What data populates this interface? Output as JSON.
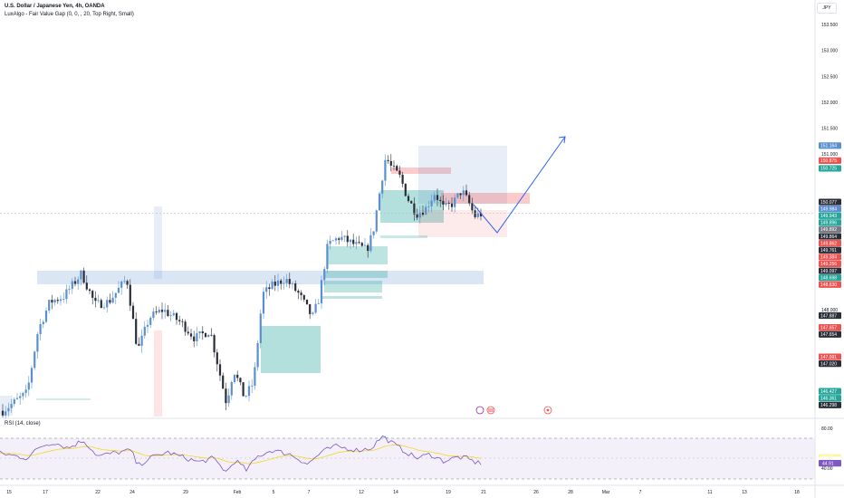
{
  "header": {
    "title": "U.S. Dollar / Japanese Yen, 4h, OANDA",
    "indicator": "LuxAlgo - Fair Value Gap (0, 0, , 20, Top Right, Small)",
    "currency": "JPY"
  },
  "rsi_header": "RSI (14, close)",
  "countdown": "02:02:19",
  "colors": {
    "up": "#5b8fd0",
    "down": "#2a2e39",
    "fvg_bull": "#26a69a",
    "fvg_bear": "#ef5350",
    "zone_blue": "#5b8fd0",
    "rsi_line": "#7e57c2",
    "rsi_band": "#ede7f6",
    "projection": "#2962ff"
  },
  "chart_data": [
    {
      "type": "candlestick",
      "symbol": "USDJPY",
      "timeframe": "4h",
      "x_ticks": [
        "15",
        "17",
        "22",
        "24",
        "29",
        "Feb",
        "5",
        "7",
        "12",
        "14",
        "19",
        "21",
        "26",
        "28",
        "Mar",
        "7",
        "11",
        "13",
        "18"
      ],
      "y_ticks": [
        "153.500",
        "153.000",
        "152.500",
        "152.000",
        "151.500",
        "151.000",
        "148.000"
      ],
      "ylim": [
        145.8,
        153.7
      ],
      "price_tags": [
        {
          "label": "151.164",
          "color": "#5b8fd0"
        },
        {
          "label": "150.875",
          "color": "#ef5350"
        },
        {
          "label": "150.725",
          "color": "#26a69a"
        },
        {
          "label": "150.077",
          "color": "#2a2e39"
        },
        {
          "label": "149.984",
          "color": "#5b8fd0"
        },
        {
          "label": "149.943",
          "color": "#26a69a"
        },
        {
          "label": "149.896",
          "color": "#26a69a"
        },
        {
          "label": "149.892",
          "color": "#787b86"
        },
        {
          "label": "149.864",
          "color": "#2a2e39"
        },
        {
          "label": "149.862",
          "color": "#ef5350"
        },
        {
          "label": "149.761",
          "color": "#2a2e39"
        },
        {
          "label": "149.384",
          "color": "#ef5350"
        },
        {
          "label": "149.256",
          "color": "#ef5350"
        },
        {
          "label": "149.097",
          "color": "#2a2e39"
        },
        {
          "label": "148.698",
          "color": "#26a69a"
        },
        {
          "label": "148.630",
          "color": "#ef5350"
        },
        {
          "label": "147.887",
          "color": "#2a2e39"
        },
        {
          "label": "147.657",
          "color": "#ef5350"
        },
        {
          "label": "147.654",
          "color": "#2a2e39"
        },
        {
          "label": "147.091",
          "color": "#ef5350"
        },
        {
          "label": "147.020",
          "color": "#2a2e39"
        },
        {
          "label": "146.427",
          "color": "#26a69a"
        },
        {
          "label": "146.361",
          "color": "#26a69a"
        },
        {
          "label": "146.298",
          "color": "#2a2e39"
        }
      ]
    },
    {
      "type": "line",
      "name": "RSI (14, close)",
      "y_ticks": [
        "80.00",
        "40.00"
      ],
      "ylim": [
        36,
        84
      ],
      "levels": [
        70,
        50,
        30
      ],
      "tags": [
        {
          "label": "59.58",
          "color": "#ffffff",
          "text": "#131722"
        },
        {
          "label": "50.75",
          "color": "#fff59d",
          "text": "#131722"
        },
        {
          "label": "48.18",
          "color": "#ffffff",
          "text": "#131722"
        },
        {
          "label": "44.91",
          "color": "#7e57c2",
          "text": "#ffffff"
        }
      ]
    }
  ]
}
